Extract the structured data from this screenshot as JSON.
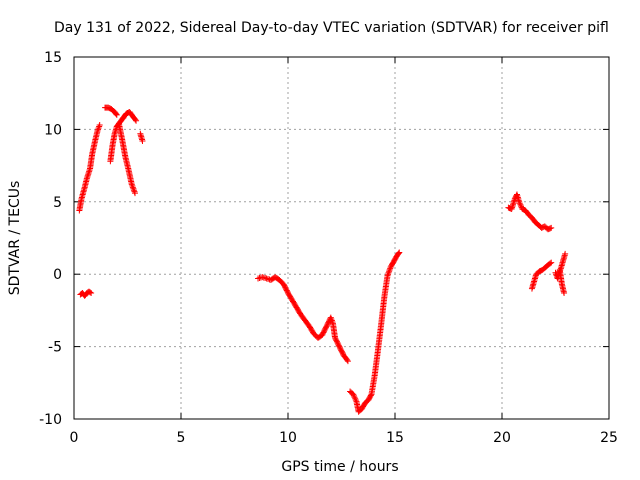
{
  "chart_data": {
    "type": "scatter",
    "title": "Day 131 of 2022, Sidereal Day-to-day VTEC variation (SDTVAR) for receiver pifl",
    "xlabel": "GPS time / hours",
    "ylabel": "SDTVAR / TECUs",
    "xlim": [
      0,
      25
    ],
    "ylim": [
      -10,
      15
    ],
    "xticks": [
      0,
      5,
      10,
      15,
      20,
      25
    ],
    "yticks": [
      -10,
      -5,
      0,
      5,
      10,
      15
    ],
    "grid": true,
    "marker": "+",
    "series": [
      {
        "name": "SDTVAR",
        "color": "#ff0000",
        "segments": [
          {
            "x": [
              0.25,
              0.35,
              0.5,
              0.6,
              0.75,
              0.85,
              1.0,
              1.1,
              1.2
            ],
            "y": [
              4.4,
              5.2,
              6.0,
              6.6,
              7.3,
              8.3,
              9.3,
              9.9,
              10.3
            ]
          },
          {
            "x": [
              0.3,
              0.4,
              0.5,
              0.6,
              0.7,
              0.8
            ],
            "y": [
              -1.4,
              -1.3,
              -1.5,
              -1.3,
              -1.2,
              -1.3
            ]
          },
          {
            "x": [
              1.45,
              1.6,
              1.75,
              1.9,
              2.0
            ],
            "y": [
              11.5,
              11.5,
              11.4,
              11.2,
              11.0
            ]
          },
          {
            "x": [
              1.7,
              1.8,
              1.9,
              2.0,
              2.1,
              2.2,
              2.3
            ],
            "y": [
              7.8,
              8.9,
              9.7,
              10.2,
              10.4,
              10.6,
              10.8
            ]
          },
          {
            "x": [
              2.1,
              2.25,
              2.4,
              2.55,
              2.7,
              2.85
            ],
            "y": [
              10.4,
              9.3,
              8.1,
              7.2,
              6.2,
              5.6
            ]
          },
          {
            "x": [
              2.3,
              2.45,
              2.6,
              2.75,
              2.9
            ],
            "y": [
              10.8,
              11.1,
              11.2,
              10.9,
              10.6
            ]
          },
          {
            "x": [
              3.1,
              3.2
            ],
            "y": [
              9.7,
              9.2
            ]
          },
          {
            "x": [
              8.6,
              8.8,
              9.0,
              9.2,
              9.4,
              9.6,
              9.8,
              10.0,
              10.2,
              10.4,
              10.6,
              10.8,
              11.0,
              11.2,
              11.4,
              11.6,
              11.8,
              12.0,
              12.1,
              12.2,
              12.4,
              12.6,
              12.8
            ],
            "y": [
              -0.3,
              -0.2,
              -0.3,
              -0.4,
              -0.2,
              -0.4,
              -0.7,
              -1.3,
              -1.8,
              -2.3,
              -2.8,
              -3.2,
              -3.6,
              -4.1,
              -4.4,
              -4.2,
              -3.6,
              -3.0,
              -3.4,
              -4.4,
              -5.0,
              -5.6,
              -6.0
            ]
          },
          {
            "x": [
              12.9,
              13.05,
              13.2,
              13.3,
              13.45,
              13.6,
              13.75,
              13.9,
              14.05,
              14.2,
              14.35,
              14.5,
              14.65,
              14.8,
              14.95,
              15.1,
              15.2
            ],
            "y": [
              -8.1,
              -8.3,
              -8.8,
              -9.5,
              -9.3,
              -8.9,
              -8.7,
              -8.3,
              -7.0,
              -5.3,
              -3.5,
              -1.6,
              -0.1,
              0.5,
              0.9,
              1.3,
              1.5
            ]
          },
          {
            "x": [
              20.3,
              20.45,
              20.6,
              20.7,
              20.8,
              20.95,
              21.1,
              21.25,
              21.4,
              21.55,
              21.7,
              21.85,
              22.0,
              22.15,
              22.3
            ],
            "y": [
              4.6,
              4.5,
              5.2,
              5.5,
              5.0,
              4.5,
              4.4,
              4.1,
              3.9,
              3.6,
              3.4,
              3.2,
              3.3,
              3.1,
              3.2
            ]
          },
          {
            "x": [
              21.4,
              21.5,
              21.6,
              21.75,
              21.9,
              22.05,
              22.2,
              22.3
            ],
            "y": [
              -1.0,
              -0.5,
              0.0,
              0.2,
              0.3,
              0.5,
              0.7,
              0.8
            ]
          },
          {
            "x": [
              22.5,
              22.6,
              22.7,
              22.8,
              22.9
            ],
            "y": [
              0.1,
              -0.3,
              0.3,
              -0.7,
              -1.3
            ]
          },
          {
            "x": [
              22.6,
              22.75,
              22.85,
              22.95
            ],
            "y": [
              -0.2,
              0.4,
              0.9,
              1.4
            ]
          }
        ]
      }
    ]
  }
}
